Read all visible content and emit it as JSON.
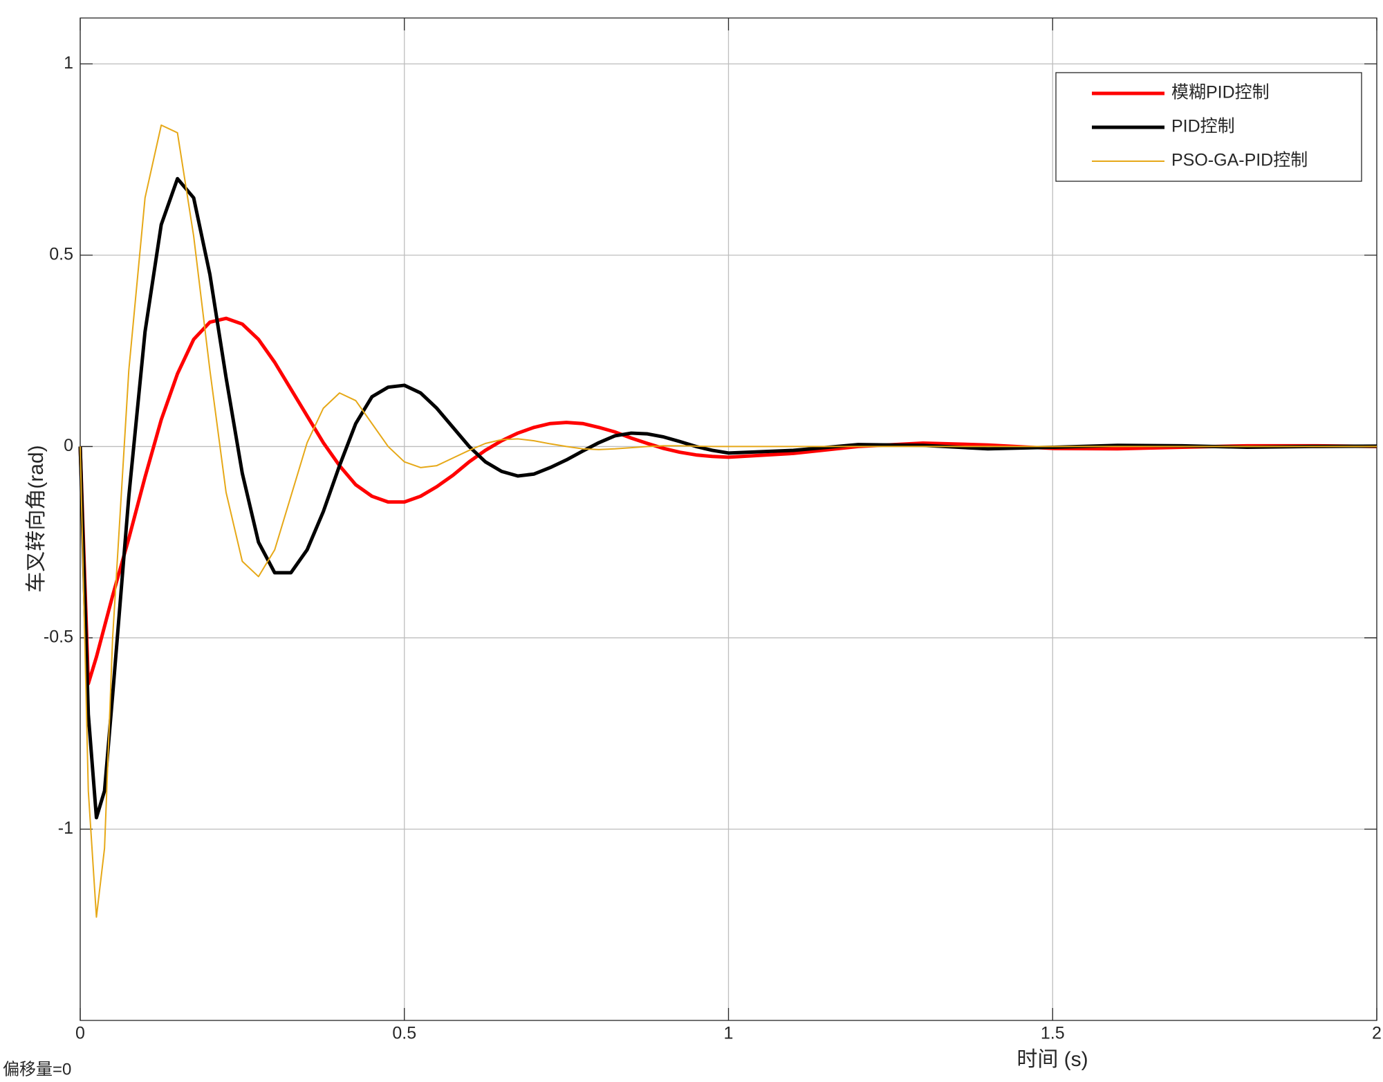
{
  "chart_data": {
    "type": "line",
    "x_label": "时间 (s)",
    "y_label": "车叉转向角(rad)",
    "annotation": "偏移量=0",
    "x": [
      0,
      0.0125,
      0.025,
      0.0375,
      0.05,
      0.075,
      0.1,
      0.125,
      0.15,
      0.175,
      0.2,
      0.225,
      0.25,
      0.275,
      0.3,
      0.325,
      0.35,
      0.375,
      0.4,
      0.425,
      0.45,
      0.475,
      0.5,
      0.525,
      0.55,
      0.575,
      0.6,
      0.625,
      0.65,
      0.675,
      0.7,
      0.725,
      0.75,
      0.775,
      0.8,
      0.825,
      0.85,
      0.875,
      0.9,
      0.925,
      0.95,
      0.975,
      1.0,
      1.1,
      1.2,
      1.3,
      1.4,
      1.5,
      1.6,
      1.7,
      1.8,
      1.9,
      2.0
    ],
    "series": [
      {
        "name": "模糊PID控制",
        "color": "#ff0000",
        "width": 5,
        "values": [
          0,
          -0.62,
          -0.55,
          -0.47,
          -0.39,
          -0.24,
          -0.08,
          0.07,
          0.19,
          0.28,
          0.325,
          0.335,
          0.32,
          0.28,
          0.22,
          0.15,
          0.08,
          0.01,
          -0.05,
          -0.1,
          -0.13,
          -0.145,
          -0.145,
          -0.13,
          -0.105,
          -0.075,
          -0.04,
          -0.01,
          0.015,
          0.035,
          0.05,
          0.06,
          0.063,
          0.06,
          0.05,
          0.038,
          0.022,
          0.008,
          -0.005,
          -0.015,
          -0.022,
          -0.026,
          -0.028,
          -0.018,
          0.0,
          0.009,
          0.004,
          -0.005,
          -0.006,
          -0.002,
          0.002,
          0.002,
          0.0
        ]
      },
      {
        "name": "PID控制",
        "color": "#000000",
        "width": 5,
        "values": [
          0,
          -0.7,
          -0.97,
          -0.9,
          -0.65,
          -0.13,
          0.3,
          0.58,
          0.7,
          0.65,
          0.45,
          0.18,
          -0.07,
          -0.25,
          -0.33,
          -0.33,
          -0.27,
          -0.17,
          -0.05,
          0.06,
          0.13,
          0.155,
          0.16,
          0.14,
          0.1,
          0.05,
          0.0,
          -0.04,
          -0.065,
          -0.077,
          -0.072,
          -0.055,
          -0.035,
          -0.012,
          0.01,
          0.028,
          0.035,
          0.033,
          0.025,
          0.013,
          0.0,
          -0.01,
          -0.017,
          -0.01,
          0.005,
          0.003,
          -0.006,
          -0.002,
          0.003,
          0.002,
          -0.002,
          0.0,
          0.001
        ]
      },
      {
        "name": "PSO-GA-PID控制",
        "color": "#e6a817",
        "width": 2,
        "values": [
          0,
          -0.9,
          -1.23,
          -1.05,
          -0.5,
          0.2,
          0.65,
          0.84,
          0.82,
          0.55,
          0.2,
          -0.12,
          -0.3,
          -0.34,
          -0.27,
          -0.13,
          0.01,
          0.1,
          0.14,
          0.12,
          0.06,
          0.0,
          -0.04,
          -0.055,
          -0.05,
          -0.03,
          -0.01,
          0.008,
          0.018,
          0.02,
          0.015,
          0.007,
          0.0,
          -0.006,
          -0.008,
          -0.006,
          -0.003,
          0.0,
          0.002,
          0.002,
          0.001,
          0.0,
          0.0,
          0,
          0,
          0,
          0,
          0,
          0,
          0,
          0,
          0,
          0
        ]
      }
    ],
    "xlim": [
      0,
      2
    ],
    "ylim": [
      -1.5,
      1.12
    ],
    "xticks": [
      0,
      0.5,
      1,
      1.5,
      2
    ],
    "yticks": [
      -1,
      -0.5,
      0,
      0.5,
      1
    ],
    "grid": true,
    "legend": "northeast"
  }
}
